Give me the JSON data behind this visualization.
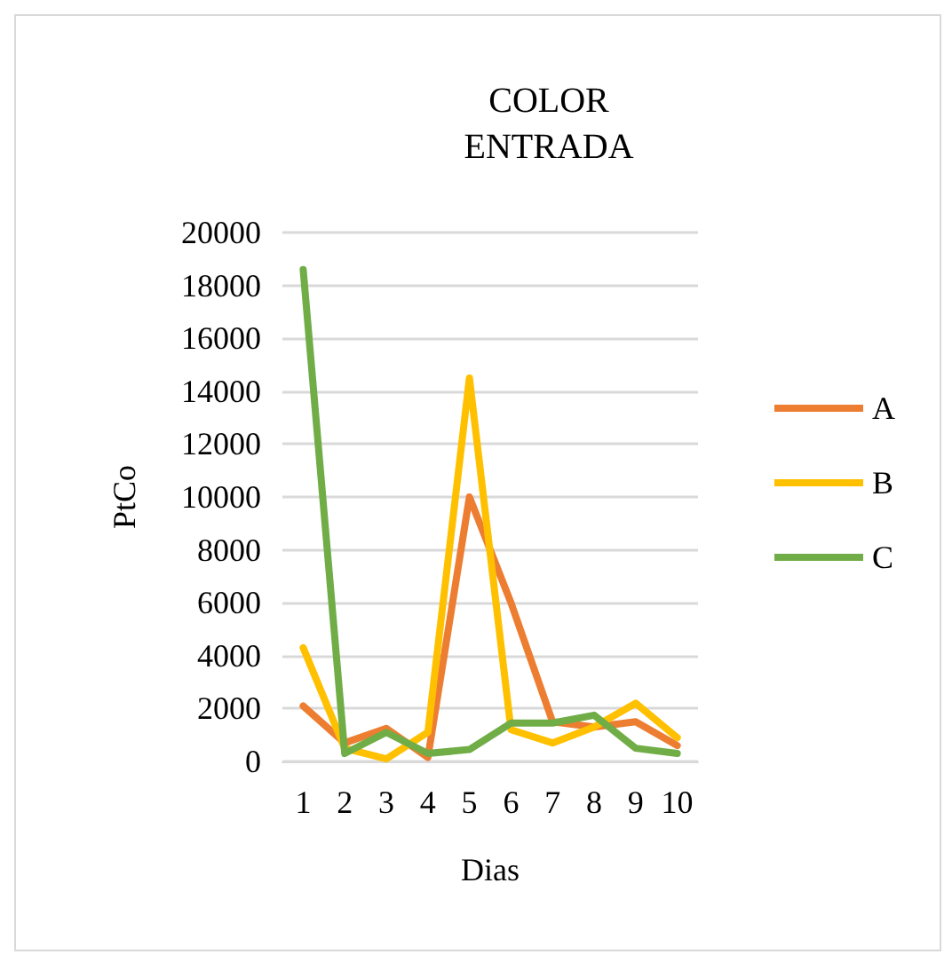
{
  "chart_data": {
    "type": "line",
    "title": "COLOR\nENTRADA",
    "xlabel": "Dias",
    "ylabel": "PtCo",
    "categories": [
      "1",
      "2",
      "3",
      "4",
      "5",
      "6",
      "7",
      "8",
      "9",
      "10"
    ],
    "series": [
      {
        "name": "A",
        "color": "#ed7d31",
        "values": [
          2100,
          700,
          1250,
          150,
          10000,
          6000,
          1500,
          1300,
          1500,
          600
        ]
      },
      {
        "name": "B",
        "color": "#ffc000",
        "values": [
          4300,
          500,
          100,
          1100,
          14500,
          1200,
          700,
          1300,
          2200,
          900
        ]
      },
      {
        "name": "C",
        "color": "#70ad47",
        "values": [
          18600,
          300,
          1100,
          300,
          450,
          1450,
          1450,
          1750,
          500,
          300
        ]
      }
    ],
    "ylim": [
      0,
      20000
    ],
    "yticks": [
      0,
      2000,
      4000,
      6000,
      8000,
      10000,
      12000,
      14000,
      16000,
      18000,
      20000
    ],
    "grid": "y",
    "legend": "right",
    "marker": "none",
    "line_style": "solid"
  }
}
